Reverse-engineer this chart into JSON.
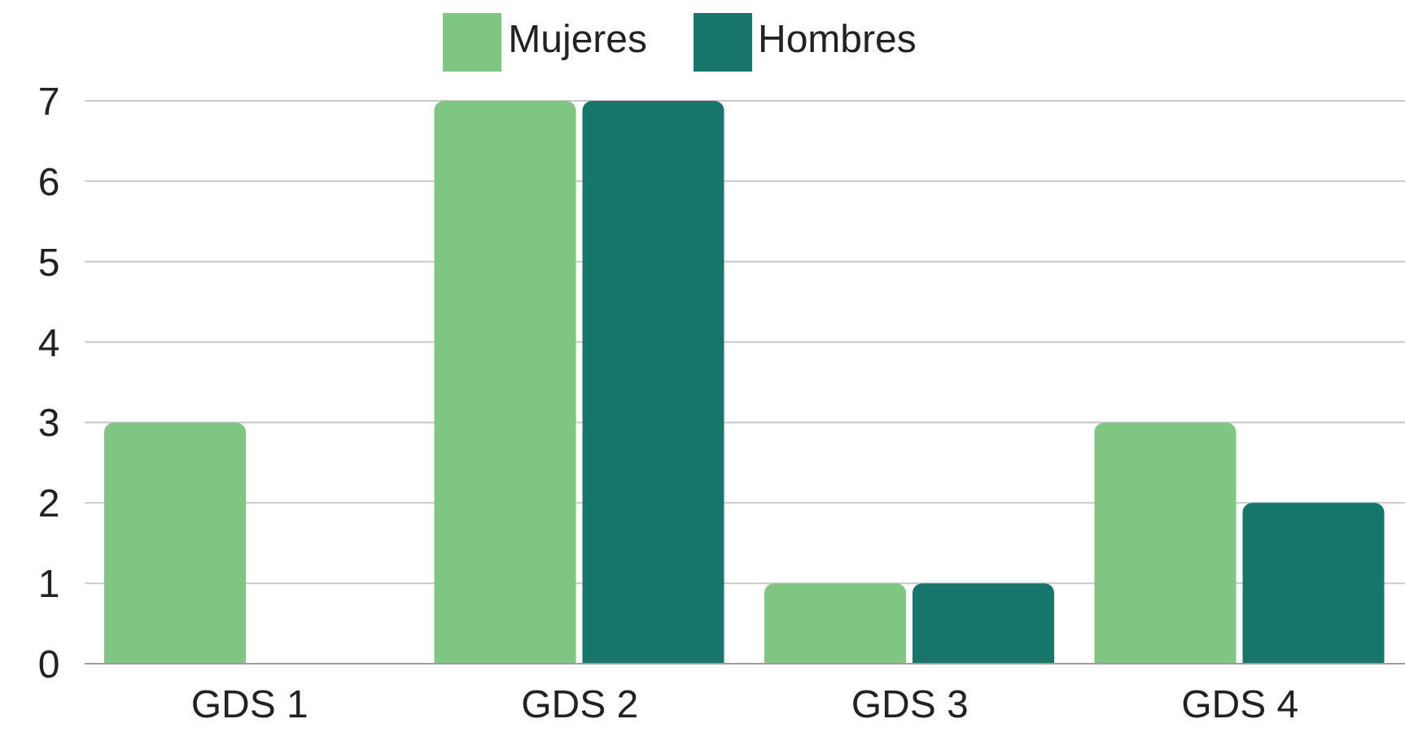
{
  "chart_data": {
    "type": "bar",
    "categories": [
      "GDS 1",
      "GDS 2",
      "GDS 3",
      "GDS 4"
    ],
    "series": [
      {
        "name": "Mujeres",
        "color": "#80c683",
        "values": [
          3,
          7,
          1,
          3
        ]
      },
      {
        "name": "Hombres",
        "color": "#17766c",
        "values": [
          0,
          7,
          1,
          2
        ]
      }
    ],
    "ylim": [
      0,
      7
    ],
    "yticks": [
      0,
      1,
      2,
      3,
      4,
      5,
      6,
      7
    ],
    "grid": "y",
    "legend": "top"
  }
}
